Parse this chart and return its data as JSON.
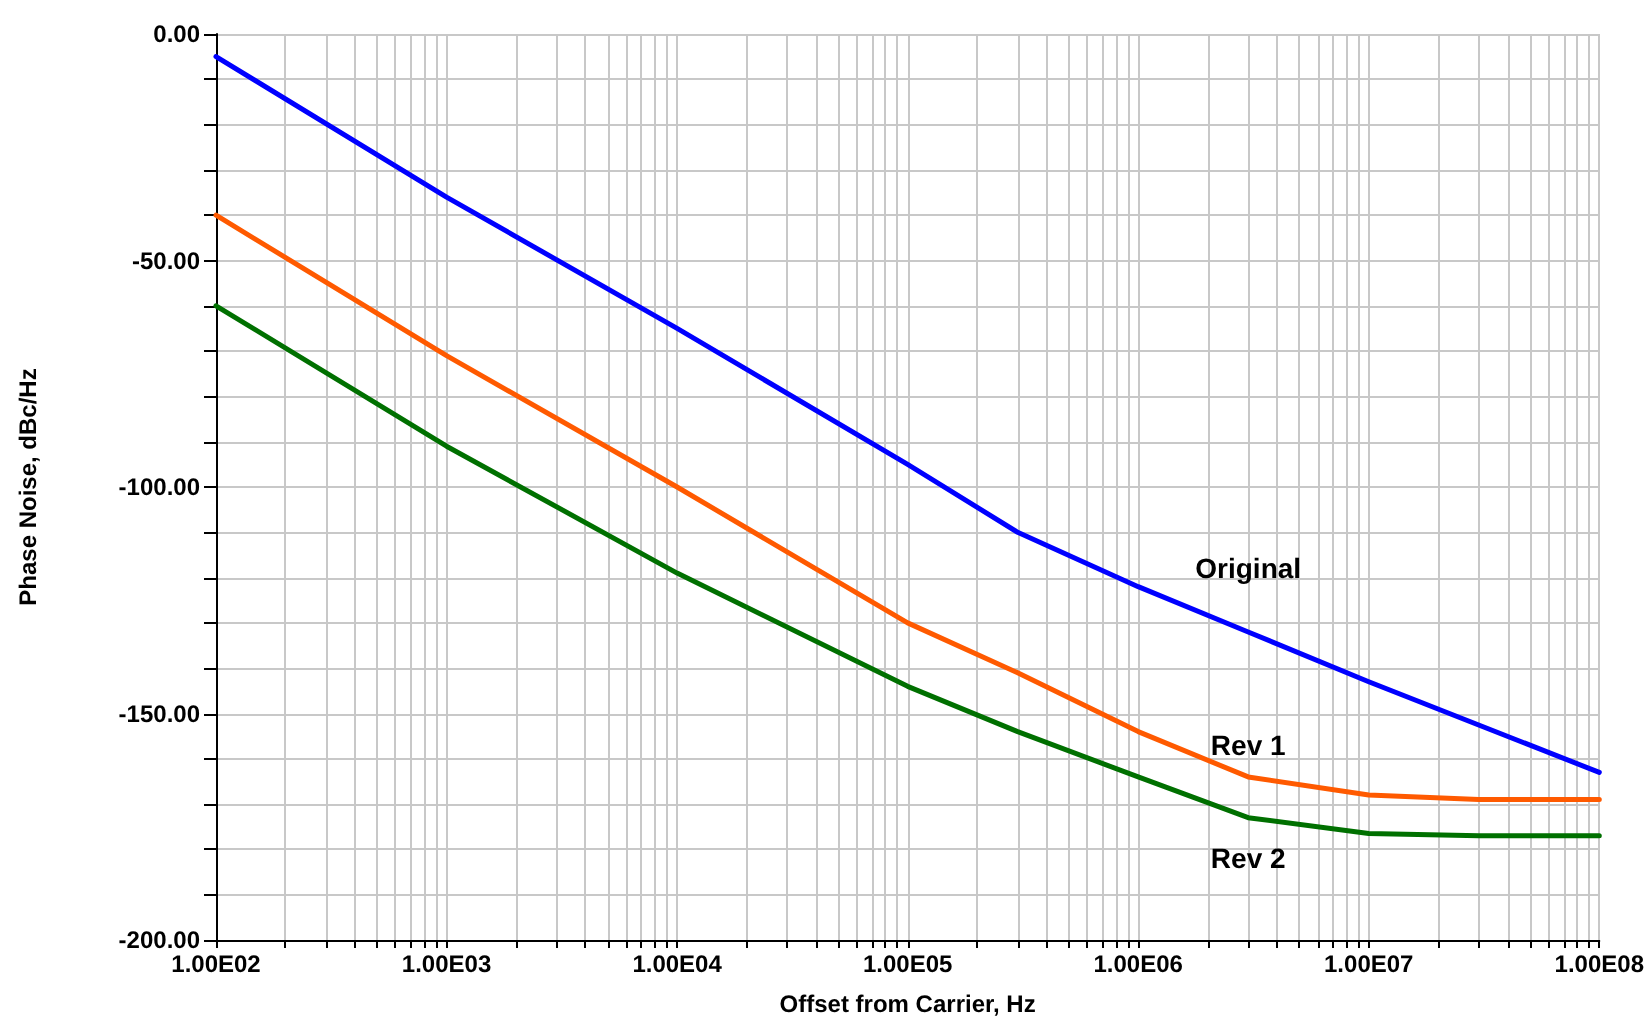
{
  "chart_data": {
    "type": "line",
    "xlabel": "Offset from Carrier, Hz",
    "ylabel": "Phase Noise, dBc/Hz",
    "log": "x",
    "grid": true,
    "marker": "none",
    "line_style": "solid",
    "legend": false,
    "xlim": [
      100,
      100000000
    ],
    "xticks": [
      {
        "value": 100,
        "label": "1.00E02"
      },
      {
        "value": 200,
        "label": null
      },
      {
        "value": 300,
        "label": null
      },
      {
        "value": 400,
        "label": null
      },
      {
        "value": 500,
        "label": null
      },
      {
        "value": 600,
        "label": null
      },
      {
        "value": 700,
        "label": null
      },
      {
        "value": 800,
        "label": null
      },
      {
        "value": 900,
        "label": null
      },
      {
        "value": 1000,
        "label": "1.00E03"
      },
      {
        "value": 2000,
        "label": null
      },
      {
        "value": 3000,
        "label": null
      },
      {
        "value": 4000,
        "label": null
      },
      {
        "value": 5000,
        "label": null
      },
      {
        "value": 6000,
        "label": null
      },
      {
        "value": 7000,
        "label": null
      },
      {
        "value": 8000,
        "label": null
      },
      {
        "value": 9000,
        "label": null
      },
      {
        "value": 10000,
        "label": "1.00E04"
      },
      {
        "value": 20000,
        "label": null
      },
      {
        "value": 30000,
        "label": null
      },
      {
        "value": 40000,
        "label": null
      },
      {
        "value": 50000,
        "label": null
      },
      {
        "value": 60000,
        "label": null
      },
      {
        "value": 70000,
        "label": null
      },
      {
        "value": 80000,
        "label": null
      },
      {
        "value": 90000,
        "label": null
      },
      {
        "value": 100000,
        "label": "1.00E05"
      },
      {
        "value": 200000,
        "label": null
      },
      {
        "value": 300000,
        "label": null
      },
      {
        "value": 400000,
        "label": null
      },
      {
        "value": 500000,
        "label": null
      },
      {
        "value": 600000,
        "label": null
      },
      {
        "value": 700000,
        "label": null
      },
      {
        "value": 800000,
        "label": null
      },
      {
        "value": 900000,
        "label": null
      },
      {
        "value": 1000000,
        "label": "1.00E06"
      },
      {
        "value": 2000000,
        "label": null
      },
      {
        "value": 3000000,
        "label": null
      },
      {
        "value": 4000000,
        "label": null
      },
      {
        "value": 5000000,
        "label": null
      },
      {
        "value": 6000000,
        "label": null
      },
      {
        "value": 7000000,
        "label": null
      },
      {
        "value": 8000000,
        "label": null
      },
      {
        "value": 9000000,
        "label": null
      },
      {
        "value": 10000000,
        "label": "1.00E07"
      },
      {
        "value": 20000000,
        "label": null
      },
      {
        "value": 30000000,
        "label": null
      },
      {
        "value": 40000000,
        "label": null
      },
      {
        "value": 50000000,
        "label": null
      },
      {
        "value": 60000000,
        "label": null
      },
      {
        "value": 70000000,
        "label": null
      },
      {
        "value": 80000000,
        "label": null
      },
      {
        "value": 90000000,
        "label": null
      },
      {
        "value": 100000000,
        "label": "1.00E08"
      }
    ],
    "ylim": [
      -200,
      0
    ],
    "yticks": [
      {
        "value": -200,
        "label": "-200.00"
      },
      {
        "value": -190,
        "label": null
      },
      {
        "value": -180,
        "label": null
      },
      {
        "value": -170,
        "label": null
      },
      {
        "value": -160,
        "label": null
      },
      {
        "value": -150,
        "label": "-150.00"
      },
      {
        "value": -140,
        "label": null
      },
      {
        "value": -130,
        "label": null
      },
      {
        "value": -120,
        "label": null
      },
      {
        "value": -110,
        "label": null
      },
      {
        "value": -100,
        "label": "-100.00"
      },
      {
        "value": -90,
        "label": null
      },
      {
        "value": -80,
        "label": null
      },
      {
        "value": -70,
        "label": null
      },
      {
        "value": -60,
        "label": null
      },
      {
        "value": -50,
        "label": "-50.00"
      },
      {
        "value": -40,
        "label": null
      },
      {
        "value": -30,
        "label": null
      },
      {
        "value": -20,
        "label": null
      },
      {
        "value": -10,
        "label": null
      },
      {
        "value": 0,
        "label": "0.00"
      }
    ],
    "series": [
      {
        "name": "Original",
        "color": "#0000ff",
        "x": [
          100,
          1000,
          10000,
          100000,
          300000,
          1000000,
          3000000,
          10000000,
          100000000
        ],
        "values": [
          -5,
          -36,
          -65,
          -95,
          -110,
          -122,
          -132,
          -143,
          -163
        ]
      },
      {
        "name": "Rev 1",
        "color": "#ff5a00",
        "x": [
          100,
          1000,
          10000,
          100000,
          300000,
          1000000,
          3000000,
          10000000,
          30000000,
          100000000
        ],
        "values": [
          -40,
          -71,
          -100,
          -130,
          -141,
          -154,
          -164,
          -168,
          -169,
          -169
        ]
      },
      {
        "name": "Rev 2",
        "color": "#007000",
        "x": [
          100,
          1000,
          10000,
          100000,
          300000,
          1000000,
          3000000,
          10000000,
          30000000,
          100000000
        ],
        "values": [
          -60,
          -91,
          -119,
          -144,
          -154,
          -164,
          -173,
          -176.5,
          -177,
          -177
        ]
      }
    ]
  }
}
